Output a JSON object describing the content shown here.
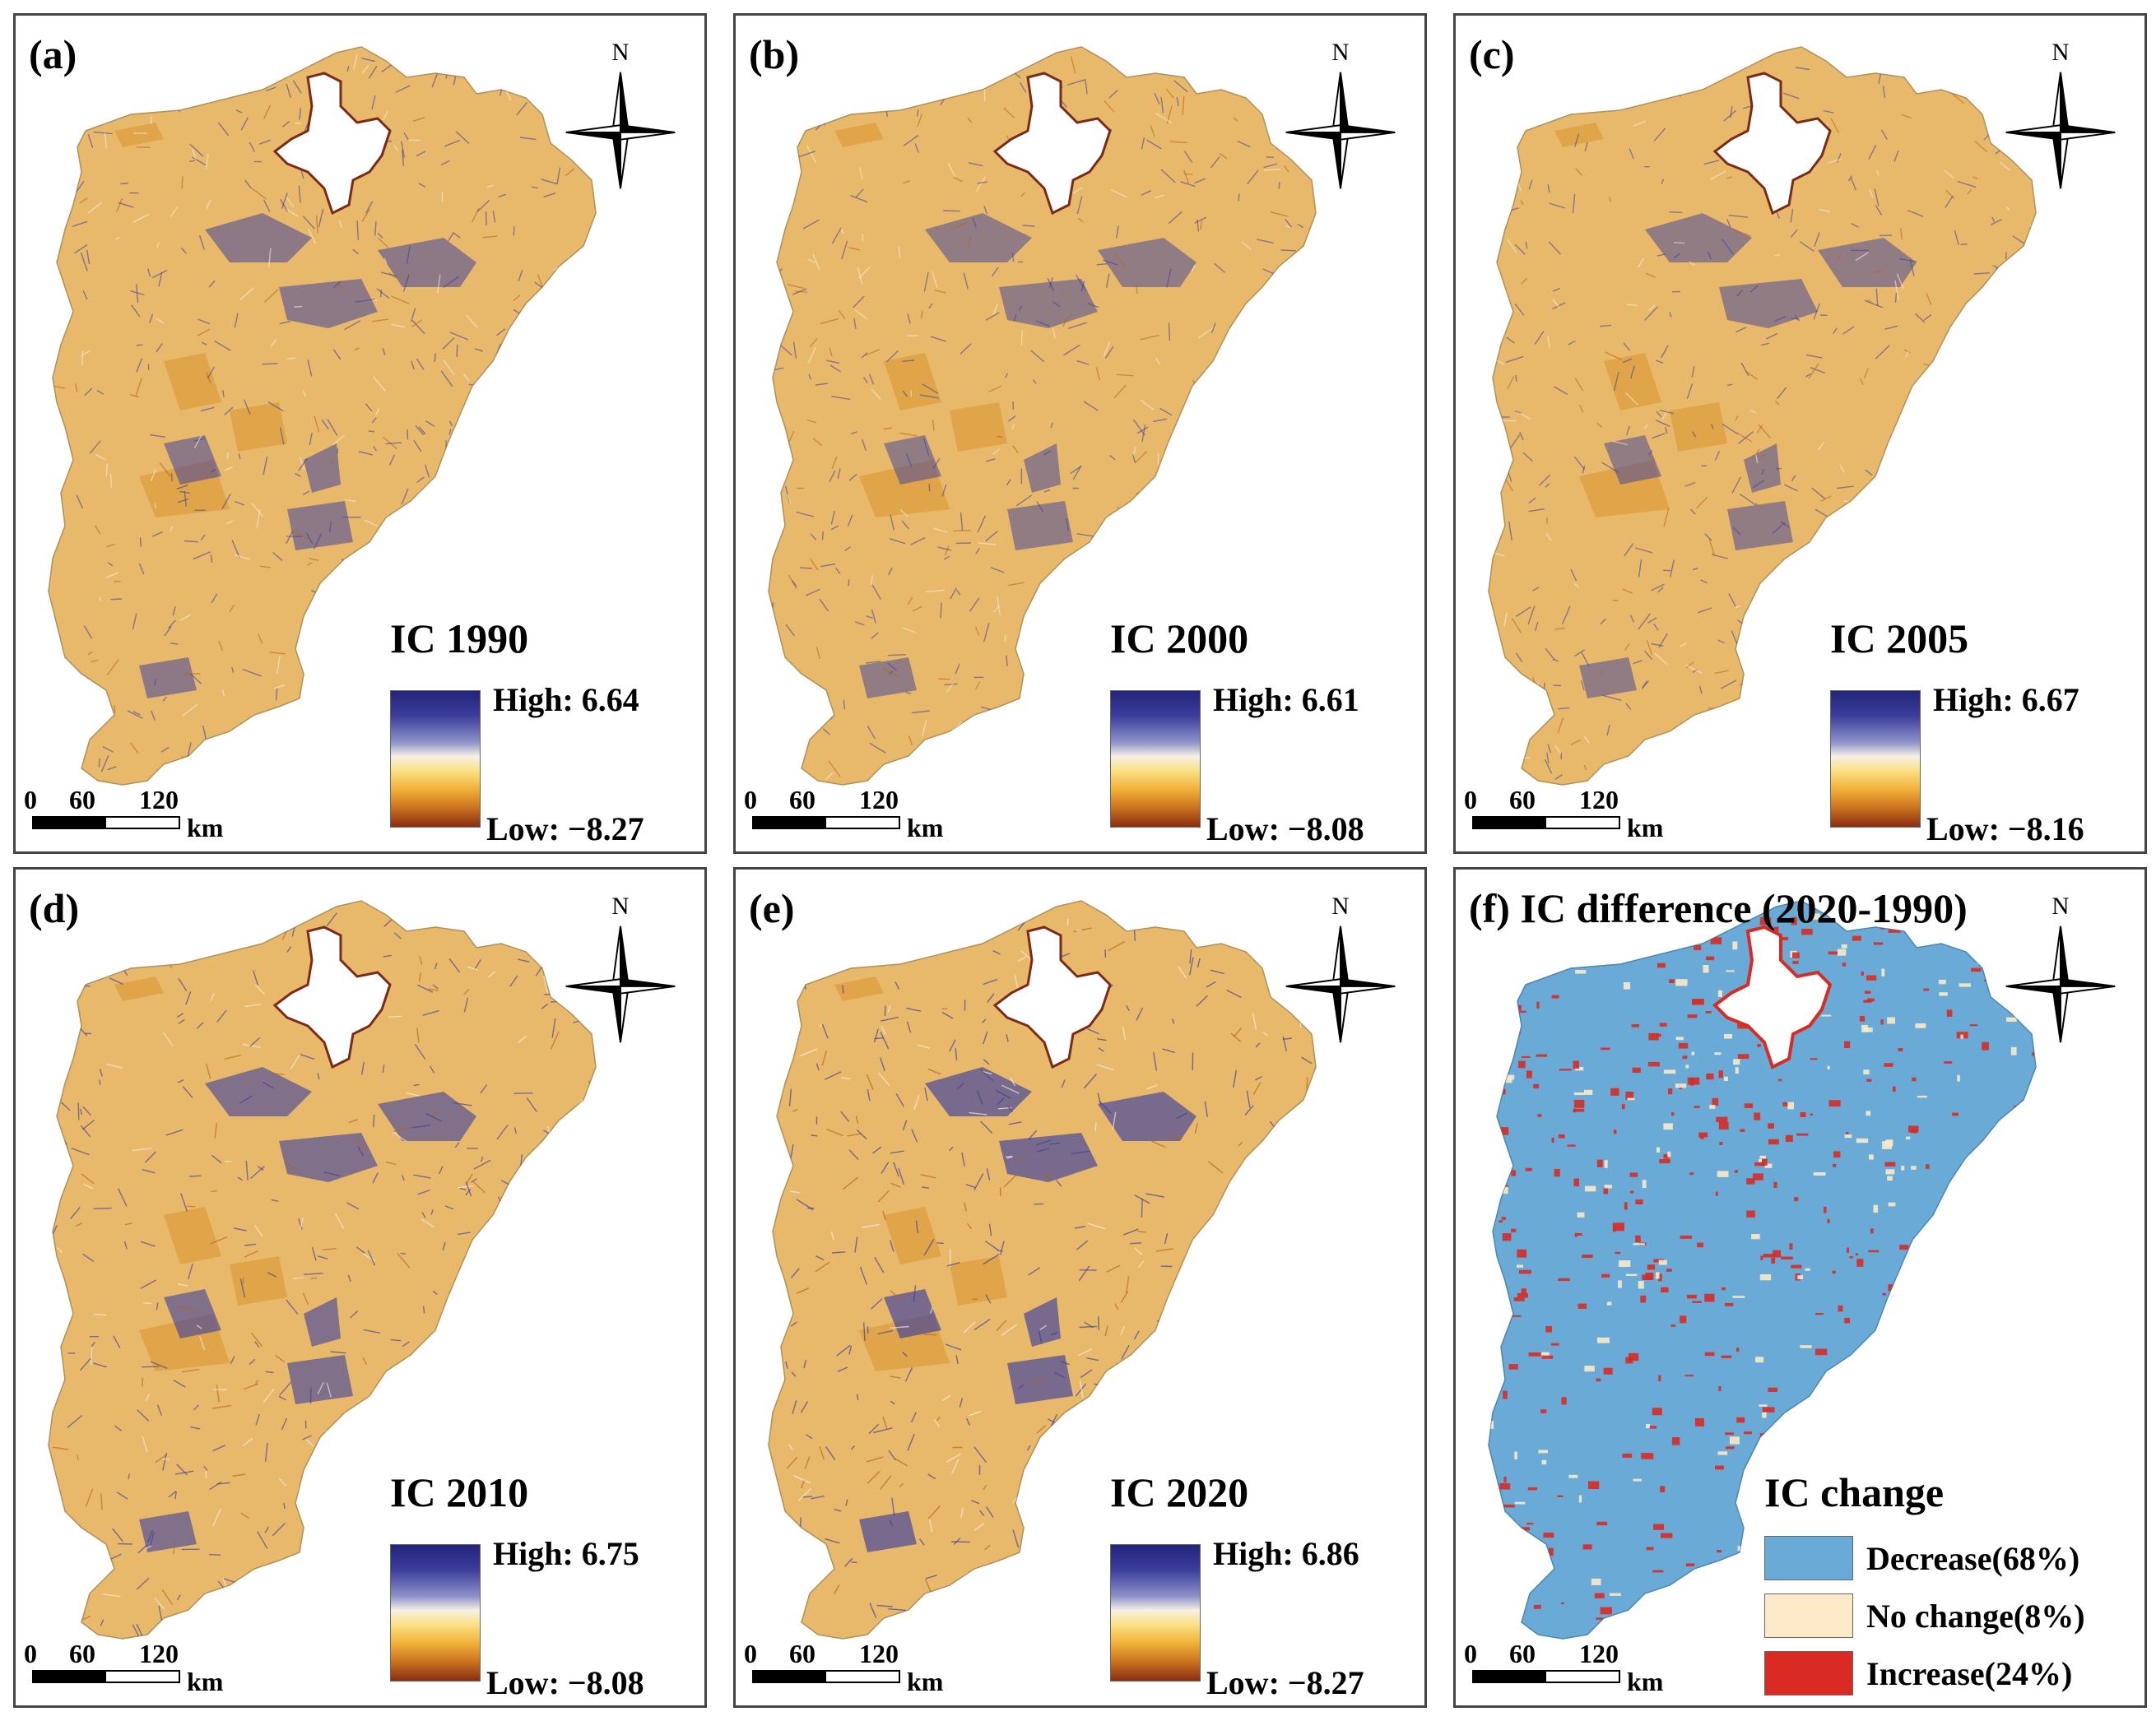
{
  "colors": {
    "high": "#23247a",
    "mid": "#f5f0e6",
    "low": "#8a2e10",
    "map_base": "#e8b96a",
    "channel": "#3b3f9e",
    "lake": "#ffffff",
    "decrease": "#6aaad6",
    "no_change": "#fbe9c8",
    "increase": "#d92a24"
  },
  "north_label": "N",
  "scale_bar": {
    "ticks": [
      "0",
      "60",
      "120"
    ],
    "unit": "km"
  },
  "panels": [
    {
      "label": "(a)",
      "legend_title": "IC 1990",
      "high": "High: 6.64",
      "low": "Low: −8.27",
      "intensity": 0.55
    },
    {
      "label": "(b)",
      "legend_title": "IC 2000",
      "high": "High: 6.61",
      "low": "Low: −8.08",
      "intensity": 0.5
    },
    {
      "label": "(c)",
      "legend_title": "IC 2005",
      "high": "High: 6.67",
      "low": "Low: −8.16",
      "intensity": 0.5
    },
    {
      "label": "(d)",
      "legend_title": "IC 2010",
      "high": "High: 6.75",
      "low": "Low: −8.08",
      "intensity": 0.7
    },
    {
      "label": "(e)",
      "legend_title": "IC 2020",
      "high": "High: 6.86",
      "low": "Low: −8.27",
      "intensity": 0.8
    }
  ],
  "difference_panel": {
    "label": "(f) IC difference (2020-1990)",
    "legend_title": "IC change",
    "classes": [
      {
        "name": "Decrease(68%)",
        "percent": 68,
        "color": "#6aaad6"
      },
      {
        "name": "No change(8%)",
        "percent": 8,
        "color": "#fbe9c8"
      },
      {
        "name": "Increase(24%)",
        "percent": 24,
        "color": "#d92a24"
      }
    ]
  }
}
